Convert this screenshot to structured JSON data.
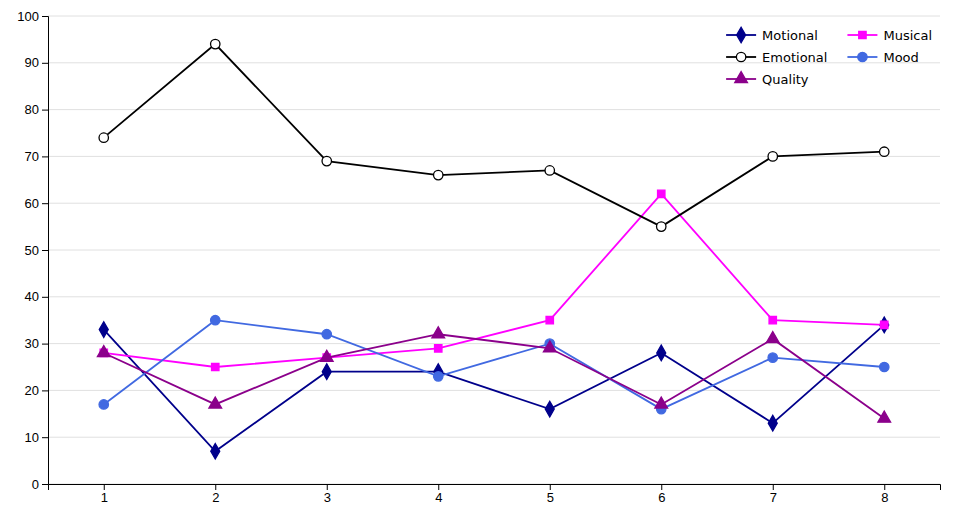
{
  "chart_data": {
    "type": "line",
    "x": [
      1,
      2,
      3,
      4,
      5,
      6,
      7,
      8
    ],
    "series": [
      {
        "name": "Motional",
        "color": "#00008B",
        "marker": "diamond",
        "values": [
          33,
          7,
          24,
          24,
          16,
          28,
          13,
          34
        ]
      },
      {
        "name": "Musical",
        "color": "#FF00FF",
        "marker": "square",
        "values": [
          28,
          25,
          27,
          29,
          35,
          62,
          35,
          34
        ]
      },
      {
        "name": "Emotional",
        "color": "#000000",
        "marker": "circle-open",
        "values": [
          74,
          94,
          69,
          66,
          67,
          55,
          70,
          71
        ]
      },
      {
        "name": "Mood",
        "color": "#4169E1",
        "marker": "circle",
        "values": [
          17,
          35,
          32,
          23,
          30,
          16,
          27,
          25
        ]
      },
      {
        "name": "Quality",
        "color": "#8B008B",
        "marker": "triangle",
        "values": [
          28,
          17,
          27,
          32,
          29,
          17,
          31,
          14
        ]
      }
    ],
    "xlim": [
      0.5,
      8.5
    ],
    "ylim": [
      0,
      100
    ],
    "xticks": [
      1,
      2,
      3,
      4,
      5,
      6,
      7,
      8
    ],
    "yticks": [
      0,
      10,
      20,
      30,
      40,
      50,
      60,
      70,
      80,
      90,
      100
    ],
    "grid": true,
    "legend": "upper right"
  }
}
